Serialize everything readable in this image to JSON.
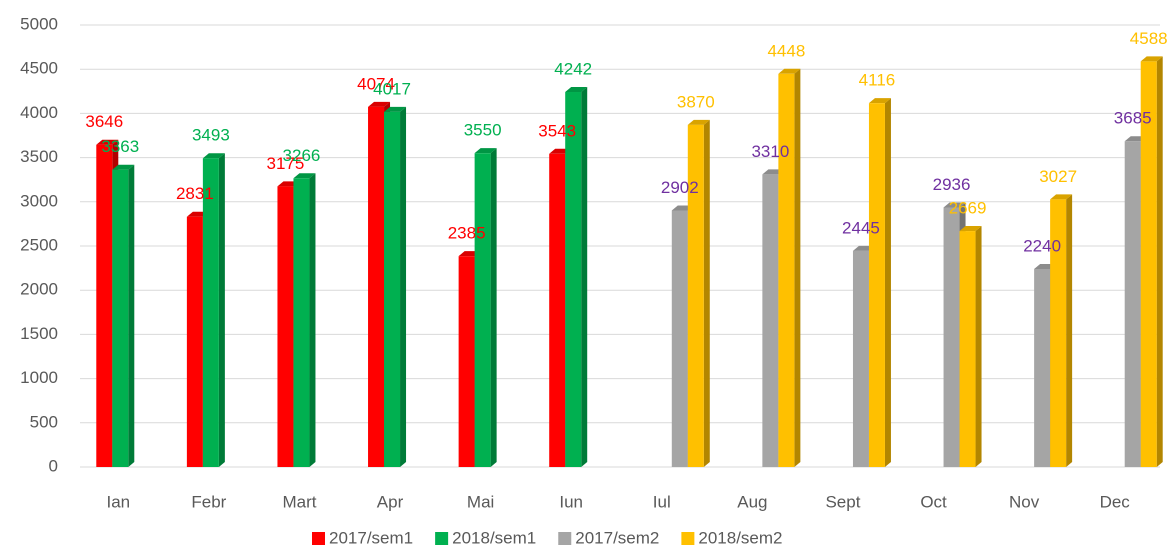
{
  "chart_data": {
    "type": "bar",
    "categories": [
      "Ian",
      "Febr",
      "Mart",
      "Apr",
      "Mai",
      "Iun",
      "Iul",
      "Aug",
      "Sept",
      "Oct",
      "Nov",
      "Dec"
    ],
    "series": [
      {
        "name": "2017/sem1",
        "color": "#ff0000",
        "label_color": "#ff0000",
        "values": [
          3646,
          2831,
          3175,
          4074,
          2385,
          3543,
          null,
          null,
          null,
          null,
          null,
          null
        ]
      },
      {
        "name": "2018/sem1",
        "color": "#00b050",
        "label_color": "#00b050",
        "values": [
          3363,
          3493,
          3266,
          4017,
          3550,
          4242,
          null,
          null,
          null,
          null,
          null,
          null
        ]
      },
      {
        "name": "2017/sem2",
        "color": "#a5a5a5",
        "label_color": "#7030a0",
        "values": [
          null,
          null,
          null,
          null,
          null,
          null,
          2902,
          3310,
          2445,
          2936,
          2240,
          3685
        ]
      },
      {
        "name": "2018/sem2",
        "color": "#ffc000",
        "label_color": "#ffc000",
        "values": [
          null,
          null,
          null,
          null,
          null,
          null,
          3870,
          4448,
          4116,
          2669,
          3027,
          4588
        ]
      }
    ],
    "ylim": [
      0,
      5000
    ],
    "yticks": [
      0,
      500,
      1000,
      1500,
      2000,
      2500,
      3000,
      3500,
      4000,
      4500,
      5000
    ],
    "grid": true,
    "legend": "bottom"
  }
}
